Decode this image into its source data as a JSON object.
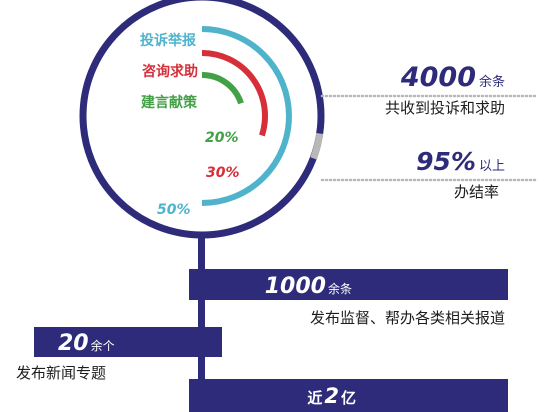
{
  "chart_data": {
    "type": "radial-bar",
    "categories": [
      "投诉举报",
      "咨询求助",
      "建言献策"
    ],
    "values": [
      50,
      30,
      20
    ],
    "value_labels": [
      "50%",
      "30%",
      "20%"
    ],
    "colors": [
      "#4fb3cc",
      "#d62f3a",
      "#43a047"
    ]
  },
  "stats": {
    "total": {
      "value": "4000",
      "unit": "余条",
      "label": "共收到投诉和求助"
    },
    "completion": {
      "value": "95%",
      "unit": "以上",
      "label": "办结率"
    }
  },
  "timeline": {
    "item1": {
      "value": "1000",
      "unit": "余条",
      "label": "发布监督、帮办各类相关报道"
    },
    "item2": {
      "value": "20",
      "unit": "余个",
      "label": "发布新闻专题"
    },
    "item3": {
      "prefix": "近",
      "value": "2",
      "unit": "亿"
    }
  },
  "colors": {
    "navy": "#2e2b7a",
    "ring": "#2e2b7a",
    "dots": "#b8b8b8",
    "gray_segment": "#b8b8b8"
  }
}
